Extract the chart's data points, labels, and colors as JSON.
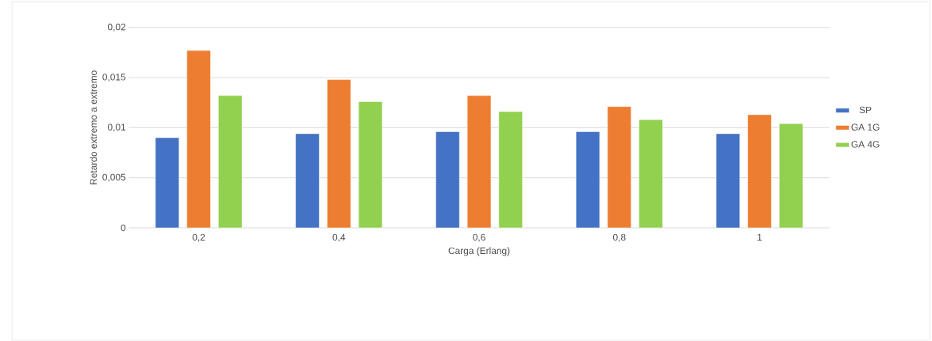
{
  "chart_data": {
    "type": "bar",
    "xlabel": "Carga (Erlang)",
    "ylabel": "Retardo extremo a extremo",
    "categories": [
      "0,2",
      "0,4",
      "0,6",
      "0,8",
      "1"
    ],
    "series": [
      {
        "name": "SP",
        "color": "#4472c4",
        "values": [
          0.009,
          0.0094,
          0.0096,
          0.0096,
          0.0094
        ]
      },
      {
        "name": "GA 1G",
        "color": "#ed7d31",
        "values": [
          0.0177,
          0.0148,
          0.0132,
          0.0121,
          0.0113
        ]
      },
      {
        "name": "GA 4G",
        "color": "#92d050",
        "values": [
          0.0132,
          0.0126,
          0.0116,
          0.0108,
          0.0104
        ]
      }
    ],
    "ylim": [
      0,
      0.02
    ],
    "yticks": [
      {
        "value": 0,
        "label": "0"
      },
      {
        "value": 0.005,
        "label": "0,005"
      },
      {
        "value": 0.01,
        "label": "0,01"
      },
      {
        "value": 0.015,
        "label": "0,015"
      },
      {
        "value": 0.02,
        "label": "0,02"
      }
    ],
    "grid": "y",
    "legend": "right"
  }
}
